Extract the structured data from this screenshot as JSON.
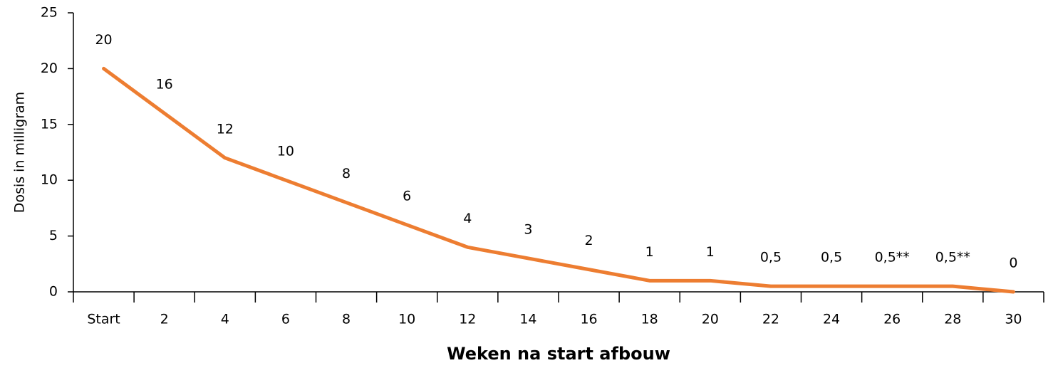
{
  "chart_data": {
    "type": "line",
    "x_label": "Weken na start afbouw",
    "y_label": "Dosis in milligram",
    "categories": [
      "Start",
      "2",
      "4",
      "6",
      "8",
      "10",
      "12",
      "14",
      "16",
      "18",
      "20",
      "22",
      "24",
      "26",
      "28",
      "30"
    ],
    "values": [
      20,
      16,
      12,
      10,
      8,
      6,
      4,
      3,
      2,
      1,
      1,
      0.5,
      0.5,
      0.5,
      0.5,
      0
    ],
    "value_labels": [
      "20",
      "16",
      "12",
      "10",
      "8",
      "6",
      "4",
      "3",
      "2",
      "1",
      "1",
      "0,5",
      "0,5",
      "0,5**",
      "0,5**",
      "0"
    ],
    "color": "#ed7d31",
    "ylim": [
      0,
      25
    ],
    "yticks": [
      0,
      5,
      10,
      15,
      20,
      25
    ],
    "grid": false
  }
}
